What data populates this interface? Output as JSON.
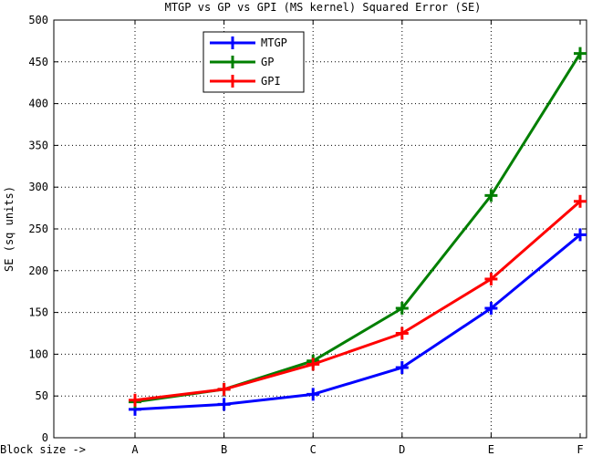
{
  "chart_data": {
    "type": "line",
    "title": "MTGP vs GP vs GPI (MS kernel) Squared Error (SE)",
    "xlabel": "Block size ->",
    "ylabel": "SE (sq units)",
    "categories": [
      "A",
      "B",
      "C",
      "D",
      "E",
      "F"
    ],
    "ylim": [
      0,
      500
    ],
    "yticks": [
      0,
      50,
      100,
      150,
      200,
      250,
      300,
      350,
      400,
      450,
      500
    ],
    "grid": true,
    "legend_position": "top-left",
    "series": [
      {
        "name": "MTGP",
        "color": "#0000ff",
        "values": [
          34,
          40,
          52,
          84,
          155,
          243
        ]
      },
      {
        "name": "GP",
        "color": "#007f00",
        "values": [
          43,
          58,
          92,
          155,
          290,
          460
        ]
      },
      {
        "name": "GPI",
        "color": "#ff0000",
        "values": [
          45,
          58,
          88,
          125,
          190,
          283
        ]
      }
    ]
  }
}
